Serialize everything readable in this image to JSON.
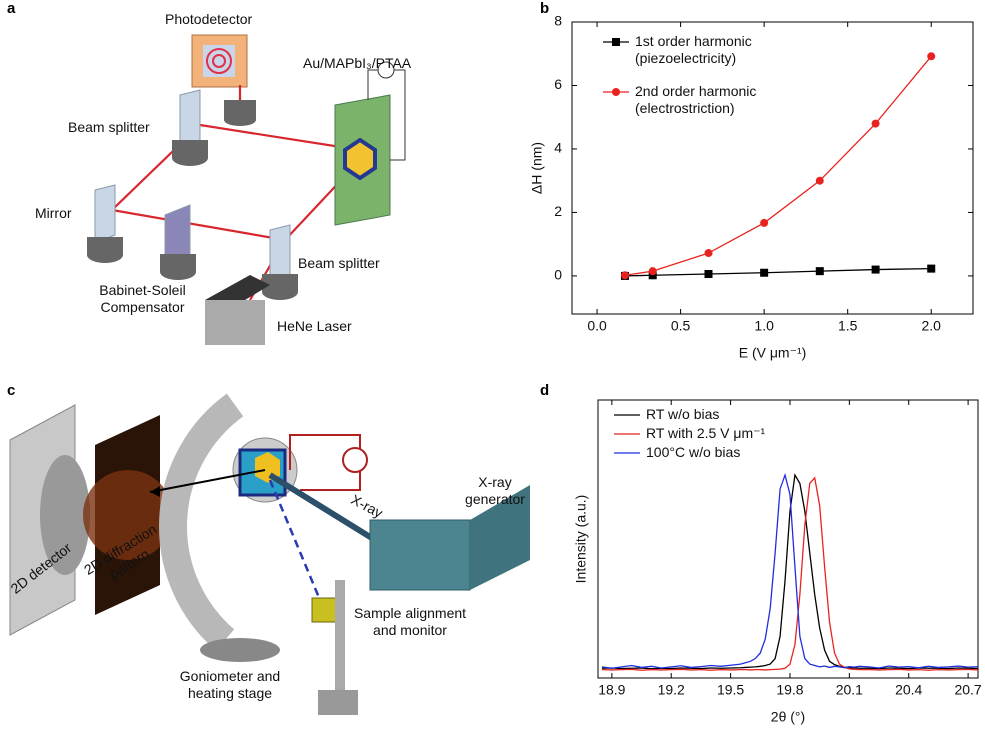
{
  "panel_labels": [
    "a",
    "b",
    "c",
    "d"
  ],
  "diagram_a": {
    "photodetector": "Photodetector",
    "sample": "Au/MAPbI₃/PTAA",
    "beam_splitter_1": "Beam splitter",
    "mirror": "Mirror",
    "beam_splitter_2": "Beam splitter",
    "compensator": "Babinet-Soleil Compensator",
    "laser": "HeNe Laser"
  },
  "diagram_c": {
    "detector": "2D detector",
    "pattern": "2D diffraction pattern",
    "xray": "X-ray",
    "generator": "X-ray generator",
    "alignment": "Sample alignment and monitor",
    "goniometer": "Goniometer and heating stage"
  },
  "chart_data": [
    {
      "type": "line",
      "x_label": "E (V μm⁻¹)",
      "y_label": "ΔH (nm)",
      "x": [
        0.167,
        0.333,
        0.667,
        1.0,
        1.333,
        1.667,
        2.0
      ],
      "xlim": [
        -0.15,
        2.25
      ],
      "ylim": [
        -1.2,
        8
      ],
      "xticks": [
        {
          "value": 0,
          "label": "0.0"
        },
        0.5,
        {
          "value": 1,
          "label": "1.0"
        },
        1.5,
        {
          "value": 2,
          "label": "2.0"
        }
      ],
      "yticks": [
        0,
        2,
        4,
        6,
        8
      ],
      "legend": "upper left",
      "series": [
        {
          "name": "1st order harmonic (piezoelectricity)",
          "color": "#000000",
          "marker": "square",
          "values": [
            0,
            0.02,
            0.06,
            0.1,
            0.15,
            0.2,
            0.23
          ]
        },
        {
          "name": "2nd order harmonic (electrostriction)",
          "color": "#e8231f",
          "marker": "circle",
          "values": [
            0.02,
            0.15,
            0.72,
            1.67,
            3.0,
            4.8,
            6.92
          ]
        }
      ]
    },
    {
      "type": "line",
      "x_label": "2θ (°)",
      "y_label": "Intensity (a.u.)",
      "x": [
        18.85,
        18.9,
        18.95,
        19.0,
        19.05,
        19.1,
        19.15,
        19.2,
        19.25,
        19.3,
        19.35,
        19.4,
        19.45,
        19.5,
        19.55,
        19.575,
        19.6,
        19.625,
        19.65,
        19.675,
        19.7,
        19.725,
        19.75,
        19.775,
        19.8,
        19.825,
        19.85,
        19.875,
        19.9,
        19.925,
        19.95,
        19.975,
        20.0,
        20.025,
        20.05,
        20.075,
        20.1,
        20.125,
        20.15,
        20.2,
        20.25,
        20.3,
        20.35,
        20.4,
        20.45,
        20.5,
        20.55,
        20.6,
        20.65,
        20.7,
        20.75
      ],
      "xlim": [
        18.83,
        20.75
      ],
      "ylim": [
        0,
        100
      ],
      "xticks": [
        18.9,
        19.2,
        19.5,
        19.8,
        20.1,
        20.4,
        20.7
      ],
      "legend": "upper left",
      "series": [
        {
          "name": "RT w/o bias",
          "color": "#000000",
          "values": [
            3.5,
            3.6,
            3.4,
            3.5,
            3.6,
            3.3,
            3.5,
            3.4,
            3.6,
            3.5,
            3.4,
            3.6,
            3.5,
            3.6,
            3.7,
            3.8,
            3.9,
            4,
            4.2,
            4.5,
            5,
            7,
            15,
            35,
            60,
            73,
            70,
            60,
            45,
            30,
            18,
            10,
            6,
            4.8,
            4.2,
            3.9,
            3.7,
            3.6,
            3.5,
            3.5,
            3.4,
            3.6,
            3.5,
            3.4,
            3.6,
            3.5,
            3.5,
            3.4,
            3.6,
            3.5,
            3.4
          ]
        },
        {
          "name": "RT with 2.5 V μm⁻¹",
          "color": "#e8231f",
          "values": [
            3,
            2.9,
            3,
            3.1,
            2.8,
            3,
            2.9,
            3,
            3.1,
            2.9,
            3,
            2.8,
            3,
            2.9,
            3,
            3,
            2.9,
            3,
            3,
            2.9,
            3,
            3.1,
            3.2,
            3.5,
            5,
            12,
            30,
            55,
            70,
            72,
            62,
            40,
            20,
            9,
            5,
            3.8,
            3.3,
            3.1,
            3,
            3,
            2.9,
            3,
            3.1,
            2.9,
            3,
            2.8,
            3,
            2.9,
            3,
            3.1,
            2.9
          ]
        },
        {
          "name": "100°C w/o bias",
          "color": "#1f2fe0",
          "values": [
            4,
            3.5,
            4,
            4.5,
            3.8,
            4.2,
            3.6,
            4,
            4.4,
            3.8,
            4.1,
            4.5,
            4.2,
            4.6,
            5,
            5.5,
            6,
            7,
            9,
            14,
            25,
            45,
            68,
            73,
            66,
            40,
            15,
            7,
            5,
            4.5,
            4,
            4.3,
            3.8,
            4.2,
            4,
            3.7,
            4.1,
            3.9,
            4.2,
            4,
            3.6,
            4.3,
            3.9,
            4.1,
            3.7,
            4.2,
            3.8,
            4,
            4.3,
            3.9,
            4.1
          ]
        }
      ]
    }
  ]
}
